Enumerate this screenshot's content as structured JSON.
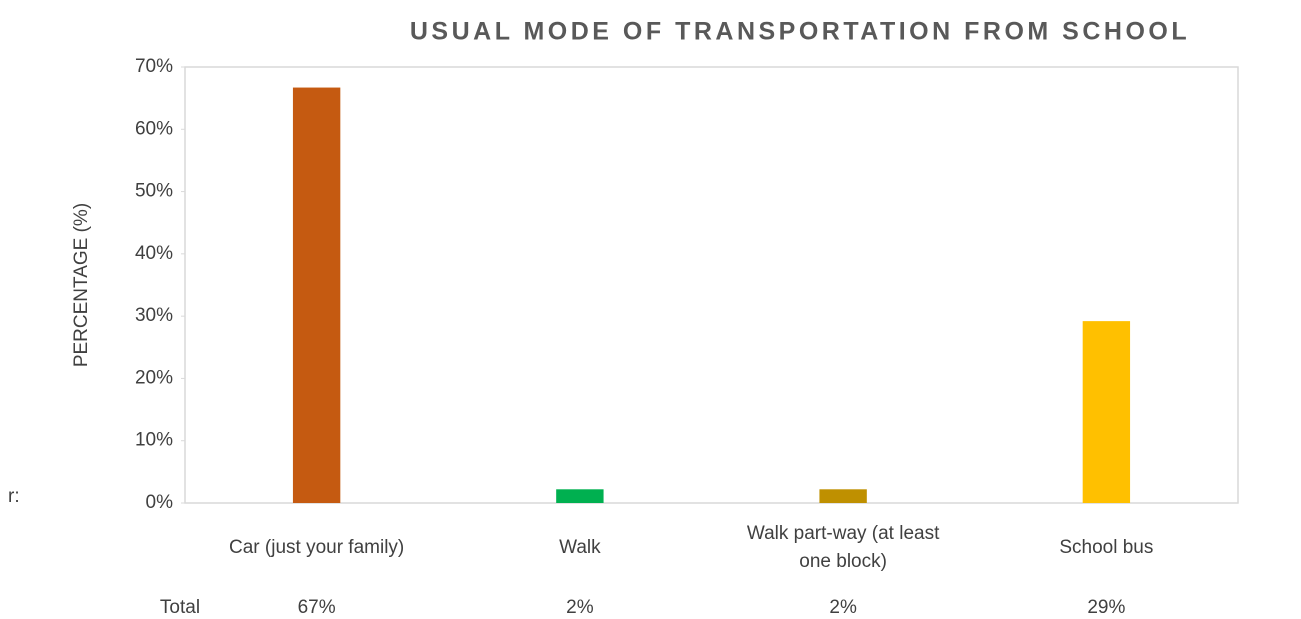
{
  "side_text": "r:",
  "chart_data": {
    "type": "bar",
    "title": "USUAL MODE OF TRANSPORTATION FROM SCHOOL",
    "y_label": "PERCENTAGE (%)",
    "categories": [
      "Car (just your family)",
      "Walk",
      "Walk part-way (at least one block)",
      "School bus"
    ],
    "values": [
      66.7,
      2.2,
      2.2,
      29.2
    ],
    "value_labels": [
      "67%",
      "2%",
      "2%",
      "29%"
    ],
    "table_row_label": "Total",
    "colors": [
      "#c55a11",
      "#00b050",
      "#bf9000",
      "#ffc000"
    ],
    "ylim": [
      0,
      70
    ],
    "yticks": [
      {
        "value": 0,
        "label": "0%"
      },
      {
        "value": 10,
        "label": "10%"
      },
      {
        "value": 20,
        "label": "20%"
      },
      {
        "value": 30,
        "label": "30%"
      },
      {
        "value": 40,
        "label": "40%"
      },
      {
        "value": 50,
        "label": "50%"
      },
      {
        "value": 60,
        "label": "60%"
      },
      {
        "value": 70,
        "label": "70%"
      }
    ],
    "grid": false
  }
}
